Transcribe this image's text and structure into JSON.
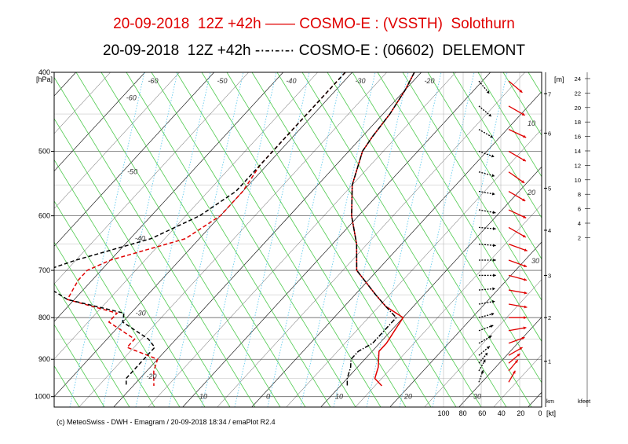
{
  "header": {
    "line1": "20-09-2018  12Z +42h —— COSMO-E : (VSSTH)  Solothurn",
    "line2": "20-09-2018  12Z +42h -·-·-·-· COSMO-E : (06602)  DELEMONT"
  },
  "footer": "(c) MeteoSwiss - DWH - Emagram / 20-09-2018 18:34 / emaPlot R2.4",
  "chart_data": {
    "type": "line",
    "title": "",
    "ylabel": "[hPa]",
    "p_ticks": [
      "400",
      "500",
      "600",
      "700",
      "800",
      "900",
      "1000"
    ],
    "p_range": [
      400,
      1030
    ],
    "t_range_at_1000": [
      -30,
      40
    ],
    "isotherm_labels": [
      {
        "label": "-60",
        "p": 410
      },
      {
        "label": "-50",
        "p": 410
      },
      {
        "label": "-40",
        "p": 410
      },
      {
        "label": "-30",
        "p": 410
      },
      {
        "label": "-20",
        "p": 410
      },
      {
        "label": "-60",
        "p": 430
      },
      {
        "label": "-50",
        "p": 530
      },
      {
        "label": "-40",
        "p": 640
      },
      {
        "label": "-30",
        "p": 790
      },
      {
        "label": "-20",
        "p": 945
      },
      {
        "label": "-10",
        "p": 1000
      },
      {
        "label": "0",
        "p": 1000
      },
      {
        "label": "10",
        "p": 1000
      },
      {
        "label": "20",
        "p": 1000
      },
      {
        "label": "30",
        "p": 1000
      }
    ],
    "mixing_ratio_labels": [
      "10",
      "20",
      "30"
    ],
    "height_km_label": "[m]",
    "height_km": [
      {
        "label": "7",
        "p": 425
      },
      {
        "label": "6",
        "p": 475
      },
      {
        "label": "5",
        "p": 555
      },
      {
        "label": "4",
        "p": 625
      },
      {
        "label": "3",
        "p": 710
      },
      {
        "label": "2",
        "p": 800
      },
      {
        "label": "1",
        "p": 905
      }
    ],
    "height_km_unit": "km",
    "wind_axis_label": "[kt]",
    "wind_ticks": [
      "100",
      "80",
      "60",
      "40",
      "20",
      "0"
    ],
    "kfeet_label": "kfeet",
    "kfeet_ticks": [
      "24",
      "22",
      "20",
      "18",
      "16",
      "14",
      "12",
      "10",
      "8",
      "6",
      "4",
      "2"
    ],
    "colors": {
      "solothurn": "#e00000",
      "delemont": "#000000",
      "isotherm": "#000000",
      "dry_adiabat": "#4cc94c",
      "mixing_ratio": "#66ccee",
      "grid": "#999999"
    },
    "series": [
      {
        "name": "COSMO-E : (VSSTH) Solothurn",
        "kind": "temperature",
        "style": "solid",
        "p": [
          400,
          420,
          450,
          480,
          500,
          550,
          600,
          650,
          700,
          750,
          775,
          800,
          830,
          860,
          880,
          900,
          920,
          950,
          970
        ],
        "t": [
          -21,
          -20,
          -19,
          -18.5,
          -18,
          -15,
          -11,
          -6.5,
          -3,
          3,
          6,
          10,
          10.5,
          11,
          11,
          12,
          13,
          14,
          16
        ]
      },
      {
        "name": "COSMO-E : (VSSTH) Solothurn",
        "kind": "dewpoint",
        "style": "dashed",
        "p": [
          400,
          440,
          480,
          520,
          560,
          600,
          640,
          680,
          700,
          720,
          760,
          790,
          810,
          850,
          870,
          900,
          930,
          950,
          970
        ],
        "t": [
          -31,
          -31,
          -31,
          -31,
          -30,
          -30,
          -32,
          -40,
          -42,
          -42,
          -41,
          -32,
          -32,
          -26,
          -26,
          -20,
          -19,
          -18,
          -17
        ]
      },
      {
        "name": "COSMO-E : (06602) DELEMONT",
        "kind": "temperature",
        "style": "dashdot",
        "p": [
          400,
          420,
          450,
          480,
          500,
          550,
          600,
          650,
          700,
          750,
          775,
          800,
          830,
          860,
          880,
          900,
          920,
          950,
          970
        ],
        "t": [
          -21,
          -20,
          -19,
          -18.5,
          -18,
          -15,
          -11,
          -6.5,
          -3,
          3,
          6,
          9,
          9,
          9,
          8,
          8,
          9,
          10,
          11
        ]
      },
      {
        "name": "COSMO-E : (06602) DELEMONT",
        "kind": "dewpoint",
        "style": "dashed",
        "p": [
          400,
          440,
          480,
          520,
          560,
          600,
          640,
          680,
          700,
          720,
          760,
          790,
          810,
          850,
          870,
          900,
          930,
          950,
          970
        ],
        "t": [
          -31,
          -31,
          -31,
          -31,
          -31,
          -33,
          -37,
          -45,
          -48,
          -48,
          -41,
          -31,
          -30,
          -24,
          -22,
          -22,
          -22,
          -22,
          -21
        ]
      }
    ],
    "wind_solothurn": [
      {
        "p": 410,
        "spd": 25,
        "dir": 310
      },
      {
        "p": 440,
        "spd": 28,
        "dir": 300
      },
      {
        "p": 470,
        "spd": 30,
        "dir": 295
      },
      {
        "p": 500,
        "spd": 32,
        "dir": 300
      },
      {
        "p": 530,
        "spd": 30,
        "dir": 305
      },
      {
        "p": 560,
        "spd": 30,
        "dir": 300
      },
      {
        "p": 590,
        "spd": 30,
        "dir": 295
      },
      {
        "p": 620,
        "spd": 32,
        "dir": 300
      },
      {
        "p": 650,
        "spd": 32,
        "dir": 290
      },
      {
        "p": 680,
        "spd": 30,
        "dir": 290
      },
      {
        "p": 710,
        "spd": 28,
        "dir": 285
      },
      {
        "p": 740,
        "spd": 28,
        "dir": 280
      },
      {
        "p": 770,
        "spd": 28,
        "dir": 280
      },
      {
        "p": 800,
        "spd": 25,
        "dir": 270
      },
      {
        "p": 830,
        "spd": 25,
        "dir": 260
      },
      {
        "p": 860,
        "spd": 22,
        "dir": 250
      },
      {
        "p": 890,
        "spd": 18,
        "dir": 240
      },
      {
        "p": 910,
        "spd": 14,
        "dir": 230
      },
      {
        "p": 930,
        "spd": 12,
        "dir": 220
      },
      {
        "p": 960,
        "spd": 8,
        "dir": 210
      }
    ],
    "wind_delemont": [
      {
        "p": 410,
        "spd": 20,
        "dir": 320
      },
      {
        "p": 440,
        "spd": 20,
        "dir": 310
      },
      {
        "p": 470,
        "spd": 20,
        "dir": 300
      },
      {
        "p": 500,
        "spd": 20,
        "dir": 290
      },
      {
        "p": 530,
        "spd": 20,
        "dir": 285
      },
      {
        "p": 560,
        "spd": 20,
        "dir": 280
      },
      {
        "p": 590,
        "spd": 22,
        "dir": 280
      },
      {
        "p": 620,
        "spd": 22,
        "dir": 275
      },
      {
        "p": 650,
        "spd": 22,
        "dir": 275
      },
      {
        "p": 680,
        "spd": 22,
        "dir": 270
      },
      {
        "p": 710,
        "spd": 22,
        "dir": 270
      },
      {
        "p": 740,
        "spd": 20,
        "dir": 265
      },
      {
        "p": 770,
        "spd": 20,
        "dir": 260
      },
      {
        "p": 800,
        "spd": 18,
        "dir": 255
      },
      {
        "p": 830,
        "spd": 16,
        "dir": 250
      },
      {
        "p": 860,
        "spd": 14,
        "dir": 240
      },
      {
        "p": 890,
        "spd": 12,
        "dir": 230
      },
      {
        "p": 910,
        "spd": 10,
        "dir": 220
      },
      {
        "p": 930,
        "spd": 8,
        "dir": 210
      },
      {
        "p": 960,
        "spd": 6,
        "dir": 200
      }
    ]
  }
}
